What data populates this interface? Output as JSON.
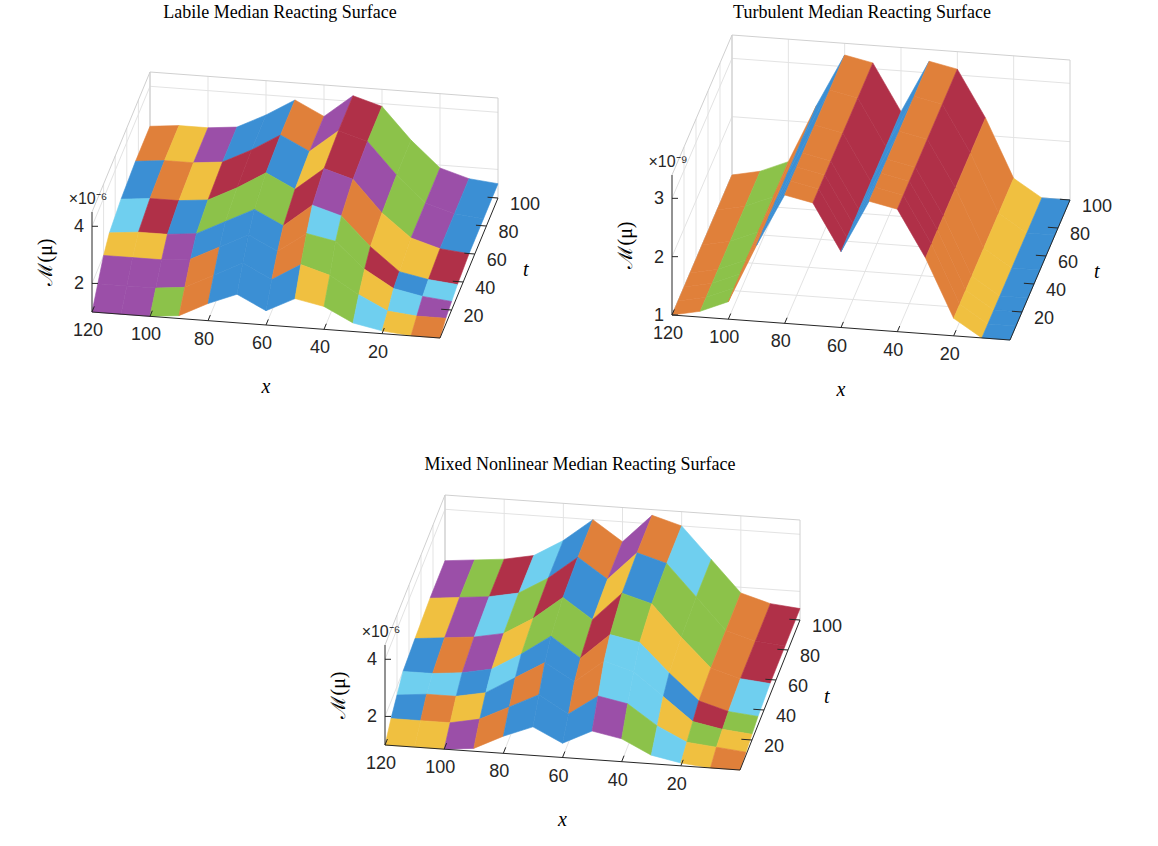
{
  "chart_data": [
    {
      "type": "surface",
      "title": "Labile Median Reacting Surface",
      "x_label": "x",
      "y_label": "t",
      "z_label": "ℳ(μ)",
      "z_multiplier": "×10⁻⁶",
      "x": [
        0,
        10,
        20,
        30,
        40,
        50,
        60,
        70,
        80,
        90,
        100,
        110,
        120
      ],
      "y": [
        0,
        10,
        20,
        30,
        50,
        75,
        100
      ],
      "z": [
        [
          1.0,
          1.0,
          1.1,
          1.3,
          1.8,
          2.0,
          1.5,
          2.0,
          1.6,
          1.1,
          1.0,
          1.0,
          1.0
        ],
        [
          1.2,
          1.2,
          1.3,
          1.8,
          2.4,
          2.7,
          2.1,
          2.6,
          2.1,
          1.6,
          1.5,
          1.5,
          1.5
        ],
        [
          1.3,
          1.4,
          1.6,
          2.2,
          3.1,
          3.3,
          2.6,
          3.1,
          2.6,
          2.1,
          2.0,
          2.0,
          2.0
        ],
        [
          1.4,
          1.5,
          1.7,
          2.5,
          3.5,
          3.8,
          3.0,
          3.5,
          3.0,
          2.5,
          2.4,
          2.4,
          2.3
        ],
        [
          1.5,
          1.6,
          1.9,
          2.7,
          3.8,
          4.1,
          3.3,
          3.8,
          3.2,
          2.7,
          2.6,
          2.6,
          2.5
        ],
        [
          1.5,
          1.6,
          1.9,
          2.8,
          3.9,
          4.2,
          3.4,
          3.9,
          3.3,
          2.8,
          2.7,
          2.7,
          2.6
        ],
        [
          1.5,
          1.6,
          1.9,
          2.8,
          3.9,
          4.2,
          3.4,
          3.9,
          3.3,
          2.8,
          2.7,
          2.7,
          2.6
        ]
      ],
      "xlim": [
        0,
        120
      ],
      "xticks": [
        20,
        40,
        60,
        80,
        100,
        120
      ],
      "ylim": [
        0,
        100
      ],
      "yticks": [
        20,
        40,
        60,
        80,
        100
      ],
      "zlim": [
        1,
        4.5
      ],
      "zticks": [
        2,
        4
      ],
      "colors": [
        "#3b8fd4",
        "#e0803a",
        "#f0c040",
        "#9b4fa8",
        "#8cc24a",
        "#6fcfef",
        "#b03048"
      ],
      "grid": true
    },
    {
      "type": "surface",
      "title": "Turbulent Median Reacting Surface",
      "x_label": "x",
      "y_label": "t",
      "z_label": "ℳ(μ)",
      "z_multiplier": "×10⁻⁹",
      "x": [
        0,
        10,
        20,
        30,
        40,
        50,
        60,
        70,
        80,
        90,
        100,
        110,
        120
      ],
      "y": [
        0,
        10,
        20,
        30,
        50,
        75,
        100
      ],
      "z": [
        [
          1.0,
          1.0,
          1.3,
          2.3,
          3.1,
          3.2,
          2.3,
          3.1,
          3.2,
          2.3,
          1.3,
          1.1,
          1.0
        ],
        [
          1.0,
          1.0,
          1.3,
          2.3,
          3.1,
          3.2,
          2.3,
          3.1,
          3.2,
          2.3,
          1.3,
          1.1,
          1.0
        ],
        [
          1.0,
          1.0,
          1.3,
          2.3,
          3.1,
          3.2,
          2.3,
          3.1,
          3.2,
          2.3,
          1.3,
          1.1,
          1.0
        ],
        [
          1.0,
          1.0,
          1.3,
          2.3,
          3.1,
          3.2,
          2.3,
          3.1,
          3.2,
          2.3,
          1.3,
          1.1,
          1.0
        ],
        [
          1.0,
          1.0,
          1.3,
          2.3,
          3.1,
          3.2,
          2.3,
          3.1,
          3.2,
          2.3,
          1.3,
          1.1,
          1.0
        ],
        [
          1.0,
          1.0,
          1.3,
          2.3,
          3.1,
          3.2,
          2.3,
          3.1,
          3.2,
          2.3,
          1.3,
          1.1,
          1.0
        ],
        [
          1.0,
          1.0,
          1.3,
          2.3,
          3.1,
          3.2,
          2.3,
          3.1,
          3.2,
          2.3,
          1.3,
          1.1,
          1.0
        ]
      ],
      "xlim": [
        0,
        120
      ],
      "xticks": [
        20,
        40,
        60,
        80,
        100,
        120
      ],
      "ylim": [
        0,
        100
      ],
      "yticks": [
        20,
        40,
        60,
        80,
        100
      ],
      "zlim": [
        1,
        3.4
      ],
      "zticks": [
        1,
        2,
        3
      ],
      "colors": [
        "#3b8fd4",
        "#e0803a",
        "#f0c040",
        "#9b4fa8",
        "#8cc24a",
        "#6fcfef",
        "#b03048"
      ],
      "grid": true
    },
    {
      "type": "surface",
      "title": "Mixed Nonlinear Median Reacting Surface",
      "x_label": "x",
      "y_label": "t",
      "z_label": "ℳ(μ)",
      "z_multiplier": "×10⁻⁶",
      "x": [
        0,
        10,
        20,
        30,
        40,
        50,
        60,
        70,
        80,
        90,
        100,
        110,
        120
      ],
      "y": [
        0,
        10,
        20,
        30,
        50,
        75,
        100
      ],
      "z": [
        [
          1.0,
          1.0,
          1.1,
          1.3,
          1.8,
          2.0,
          1.5,
          2.0,
          1.6,
          1.1,
          1.0,
          1.0,
          1.0
        ],
        [
          1.1,
          1.2,
          1.3,
          1.8,
          2.5,
          2.7,
          2.0,
          2.6,
          2.1,
          1.6,
          1.4,
          1.4,
          1.4
        ],
        [
          1.2,
          1.3,
          1.5,
          2.3,
          3.1,
          3.4,
          2.6,
          3.2,
          2.6,
          2.0,
          1.8,
          1.8,
          1.7
        ],
        [
          1.3,
          1.4,
          1.7,
          2.6,
          3.6,
          3.8,
          2.9,
          3.6,
          2.9,
          2.3,
          2.1,
          2.0,
          2.0
        ],
        [
          1.4,
          1.5,
          1.8,
          2.8,
          3.9,
          4.2,
          3.2,
          3.9,
          3.1,
          2.5,
          2.3,
          2.2,
          2.1
        ],
        [
          1.4,
          1.5,
          1.8,
          2.9,
          4.0,
          4.3,
          3.3,
          4.0,
          3.2,
          2.6,
          2.4,
          2.3,
          2.2
        ],
        [
          1.4,
          1.5,
          1.8,
          2.9,
          4.0,
          4.3,
          3.3,
          4.0,
          3.2,
          2.6,
          2.4,
          2.3,
          2.2
        ]
      ],
      "xlim": [
        0,
        120
      ],
      "xticks": [
        20,
        40,
        60,
        80,
        100,
        120
      ],
      "ylim": [
        0,
        100
      ],
      "yticks": [
        20,
        40,
        60,
        80,
        100
      ],
      "zlim": [
        1,
        4.5
      ],
      "zticks": [
        2,
        4
      ],
      "colors": [
        "#3b8fd4",
        "#e0803a",
        "#f0c040",
        "#9b4fa8",
        "#8cc24a",
        "#6fcfef",
        "#b03048"
      ],
      "grid": true
    }
  ]
}
